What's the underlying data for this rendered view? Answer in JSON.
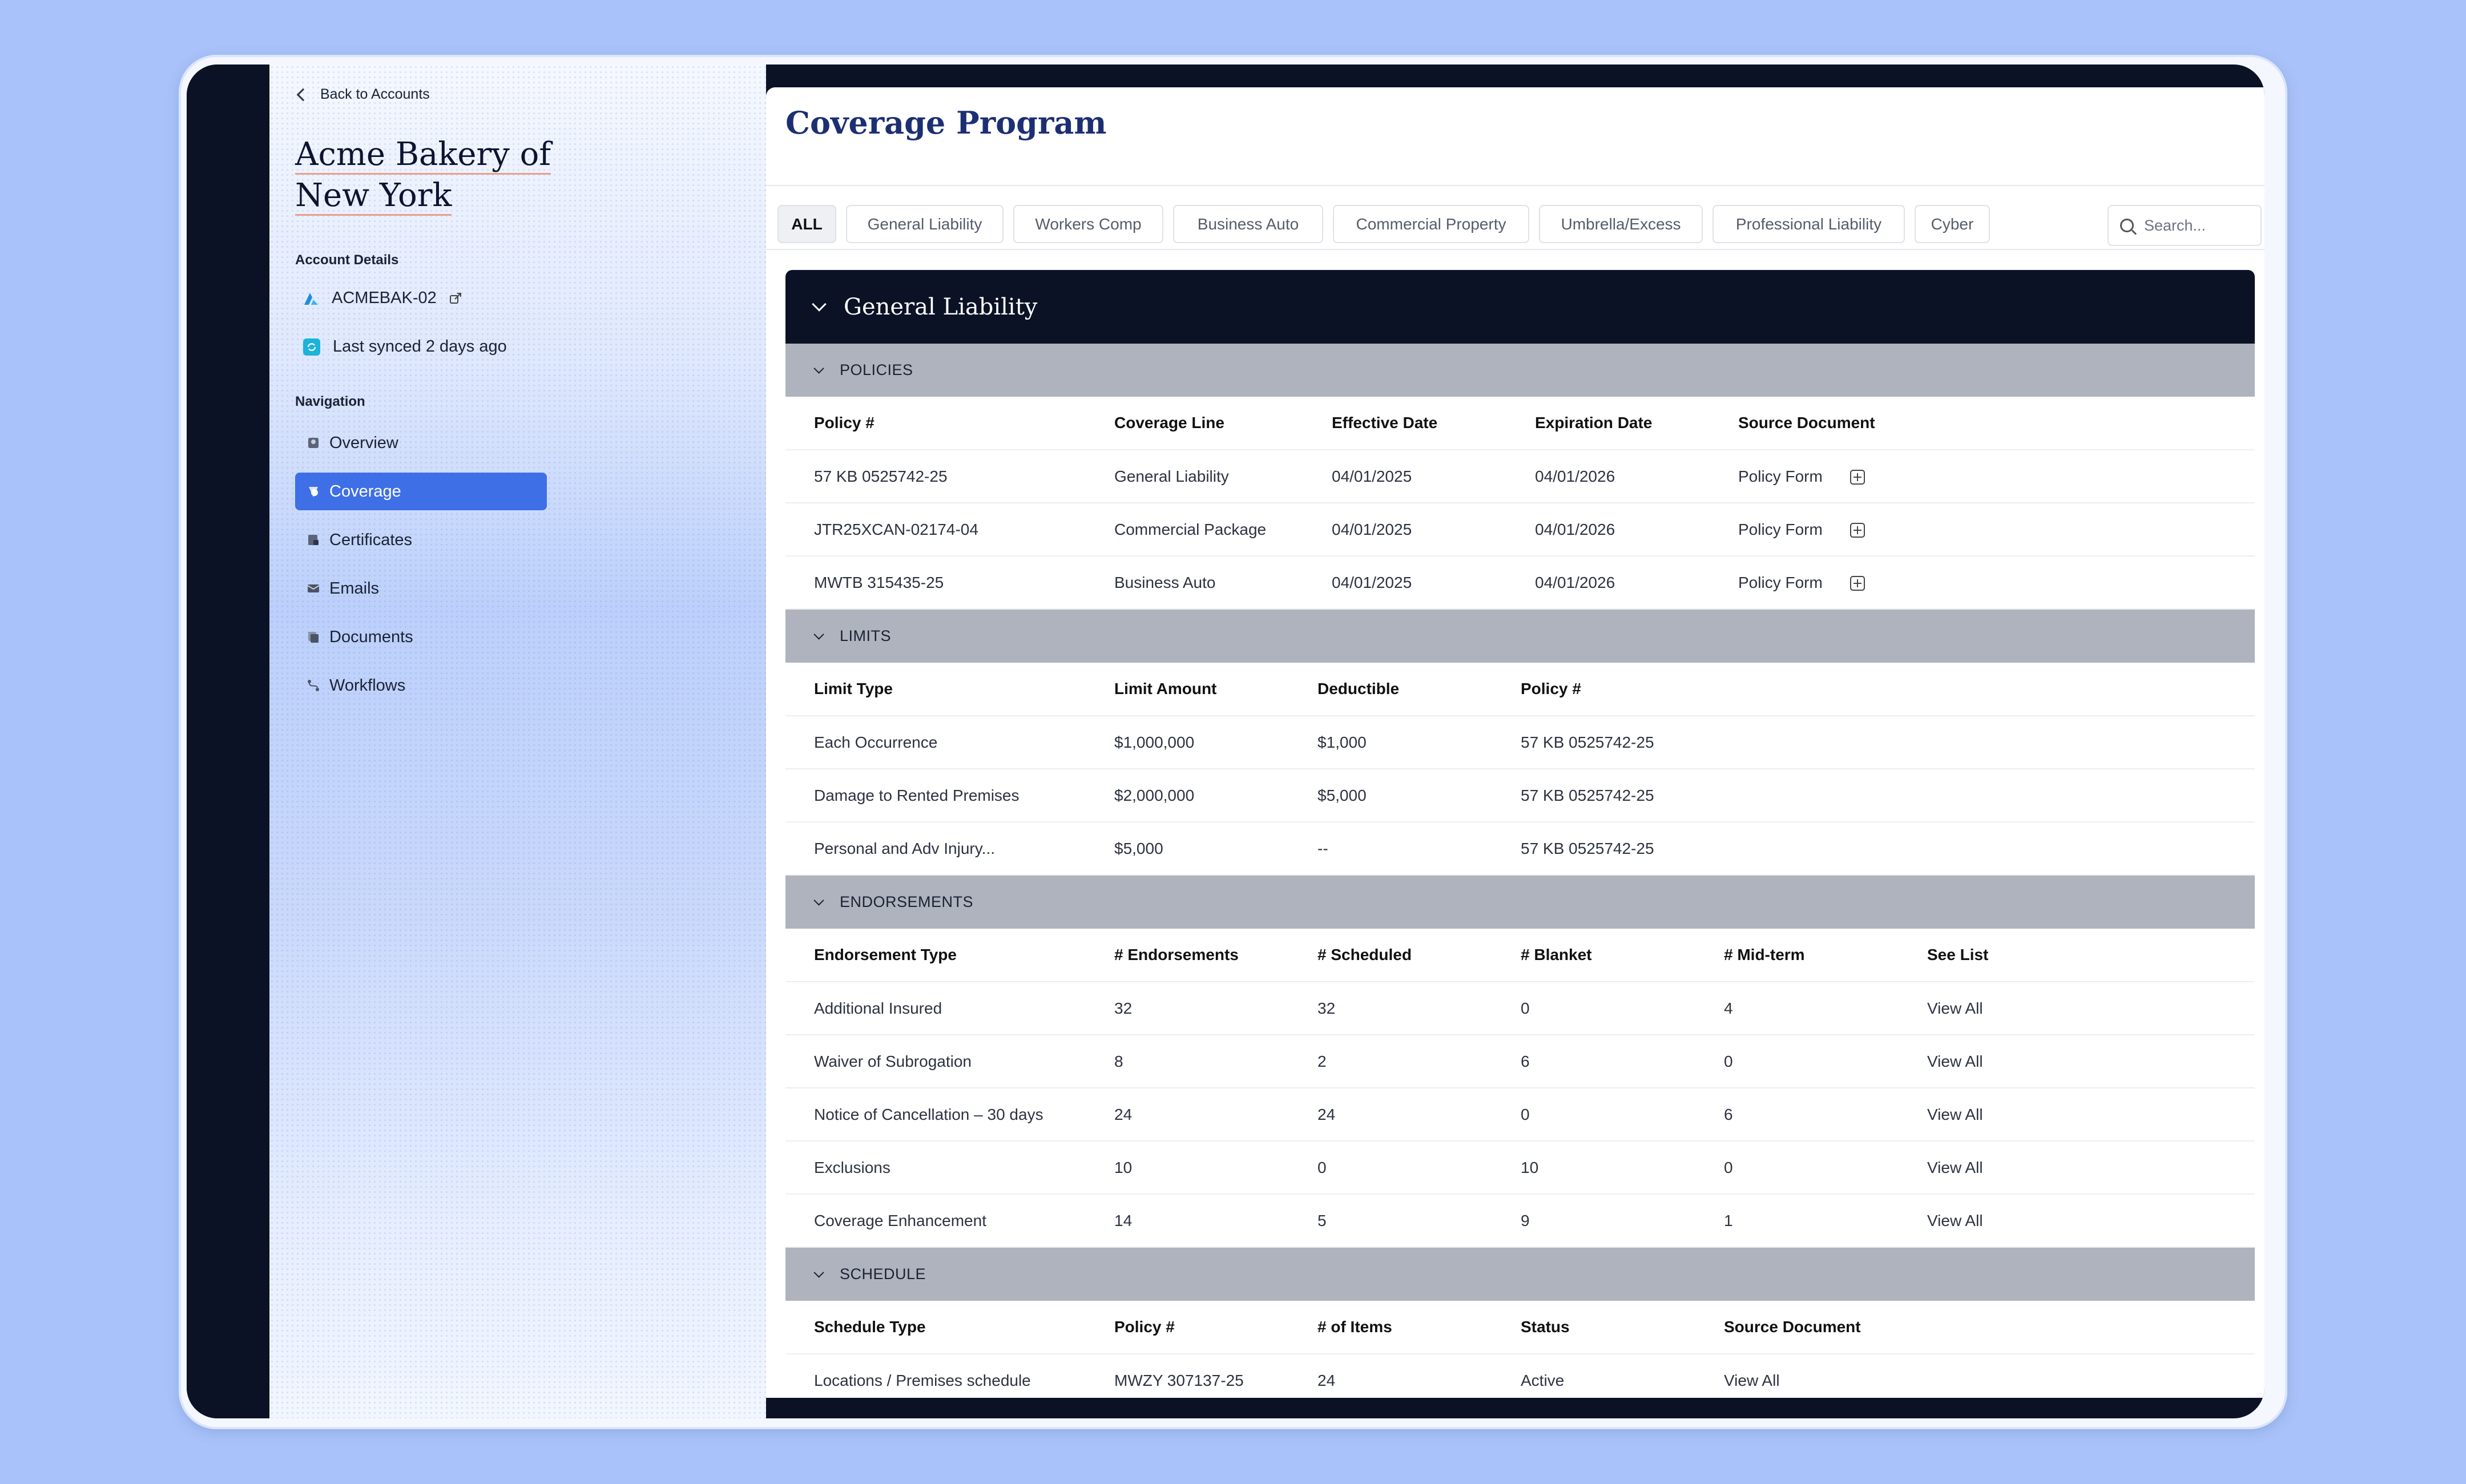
{
  "sidebar": {
    "back_label": "Back to Accounts",
    "account_title_line1": "Acme Bakery of",
    "account_title_line2": "New York",
    "account_details_label": "Account Details",
    "account_code": "ACMEBAK-02",
    "sync_status": "Last synced 2 days ago",
    "navigation_label": "Navigation",
    "nav_items": [
      {
        "label": "Overview",
        "icon": "overview-icon"
      },
      {
        "label": "Coverage",
        "icon": "coverage-icon",
        "active": true
      },
      {
        "label": "Certificates",
        "icon": "certificates-icon"
      },
      {
        "label": "Emails",
        "icon": "emails-icon"
      },
      {
        "label": "Documents",
        "icon": "documents-icon"
      },
      {
        "label": "Workflows",
        "icon": "workflows-icon"
      }
    ]
  },
  "main": {
    "title": "Coverage Program",
    "tabs": [
      "ALL",
      "General Liability",
      "Workers Comp",
      "Business Auto",
      "Commercial Property",
      "Umbrella/Excess",
      "Professional Liability",
      "Cyber"
    ],
    "active_tab": "ALL",
    "search_placeholder": "Search...",
    "group_title": "General Liability",
    "policies": {
      "title": "POLICIES",
      "columns": [
        "Policy #",
        "Coverage Line",
        "Effective Date",
        "Expiration Date",
        "Source Document"
      ],
      "rows": [
        [
          "57 KB 0525742-25",
          "General Liability",
          "04/01/2025",
          "04/01/2026",
          "Policy Form"
        ],
        [
          "JTR25XCAN-02174-04",
          "Commercial Package",
          "04/01/2025",
          "04/01/2026",
          "Policy Form"
        ],
        [
          "MWTB 315435-25",
          "Business Auto",
          "04/01/2025",
          "04/01/2026",
          "Policy Form"
        ]
      ]
    },
    "limits": {
      "title": "LIMITS",
      "columns": [
        "Limit Type",
        "Limit Amount",
        "Deductible",
        "Policy #"
      ],
      "rows": [
        [
          "Each Occurrence",
          "$1,000,000",
          "$1,000",
          "57 KB 0525742-25"
        ],
        [
          "Damage to Rented Premises",
          "$2,000,000",
          "$5,000",
          "57 KB 0525742-25"
        ],
        [
          "Personal and Adv Injury...",
          "$5,000",
          "--",
          "57 KB 0525742-25"
        ]
      ]
    },
    "endorsements": {
      "title": "ENDORSEMENTS",
      "columns": [
        "Endorsement Type",
        "# Endorsements",
        "# Scheduled",
        "# Blanket",
        "# Mid-term",
        "See List"
      ],
      "rows": [
        [
          "Additional Insured",
          "32",
          "32",
          "0",
          "4",
          "View All"
        ],
        [
          "Waiver of Subrogation",
          "8",
          "2",
          "6",
          "0",
          "View All"
        ],
        [
          "Notice of Cancellation – 30 days",
          "24",
          "24",
          "0",
          "6",
          "View All"
        ],
        [
          "Exclusions",
          "10",
          "0",
          "10",
          "0",
          "View All"
        ],
        [
          "Coverage Enhancement",
          "14",
          "5",
          "9",
          "1",
          "View All"
        ]
      ]
    },
    "schedule": {
      "title": "SCHEDULE",
      "columns": [
        "Schedule Type",
        "Policy #",
        "# of Items",
        "Status",
        "Source Document"
      ],
      "rows": [
        [
          "Locations / Premises schedule",
          "MWZY 307137-25",
          "24",
          "Active",
          "View All"
        ]
      ]
    }
  }
}
